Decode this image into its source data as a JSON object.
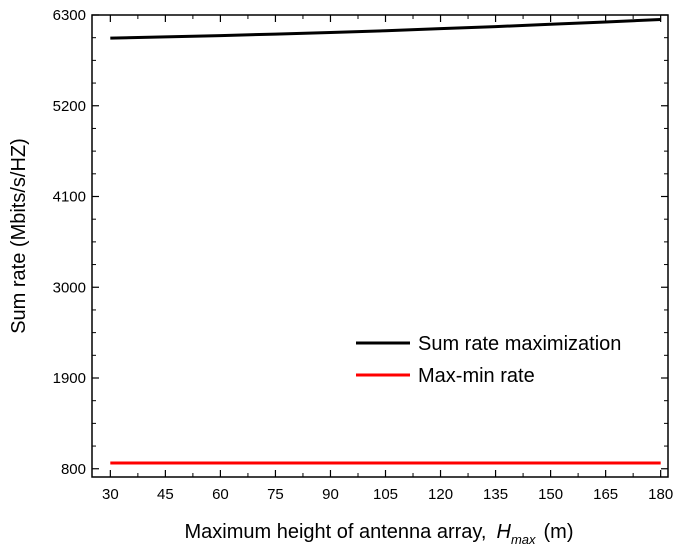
{
  "chart_data": {
    "type": "line",
    "title": "",
    "xlabel": "Maximum height of antenna array,",
    "xlabel_var": "H",
    "xlabel_sub": "max",
    "xlabel_unit": "(m)",
    "ylabel": "Sum rate (Mbits/s/HZ)",
    "xlim": [
      25,
      182
    ],
    "ylim": [
      700,
      6300
    ],
    "xticks": [
      30,
      45,
      60,
      75,
      90,
      105,
      120,
      135,
      150,
      165,
      180
    ],
    "yticks": [
      800,
      1900,
      3000,
      4100,
      5200,
      6300
    ],
    "x": [
      30,
      45,
      60,
      75,
      90,
      105,
      120,
      135,
      150,
      165,
      180
    ],
    "series": [
      {
        "name": "Sum rate maximization",
        "color": "#000000",
        "values": [
          6020,
          6035,
          6050,
          6068,
          6088,
          6110,
          6135,
          6160,
          6187,
          6215,
          6245
        ]
      },
      {
        "name": "Max-min rate",
        "color": "#ff0000",
        "values": [
          870,
          870,
          870,
          870,
          870,
          870,
          870,
          870,
          870,
          870,
          870
        ]
      }
    ],
    "legend_position": "center-right",
    "grid": false
  }
}
